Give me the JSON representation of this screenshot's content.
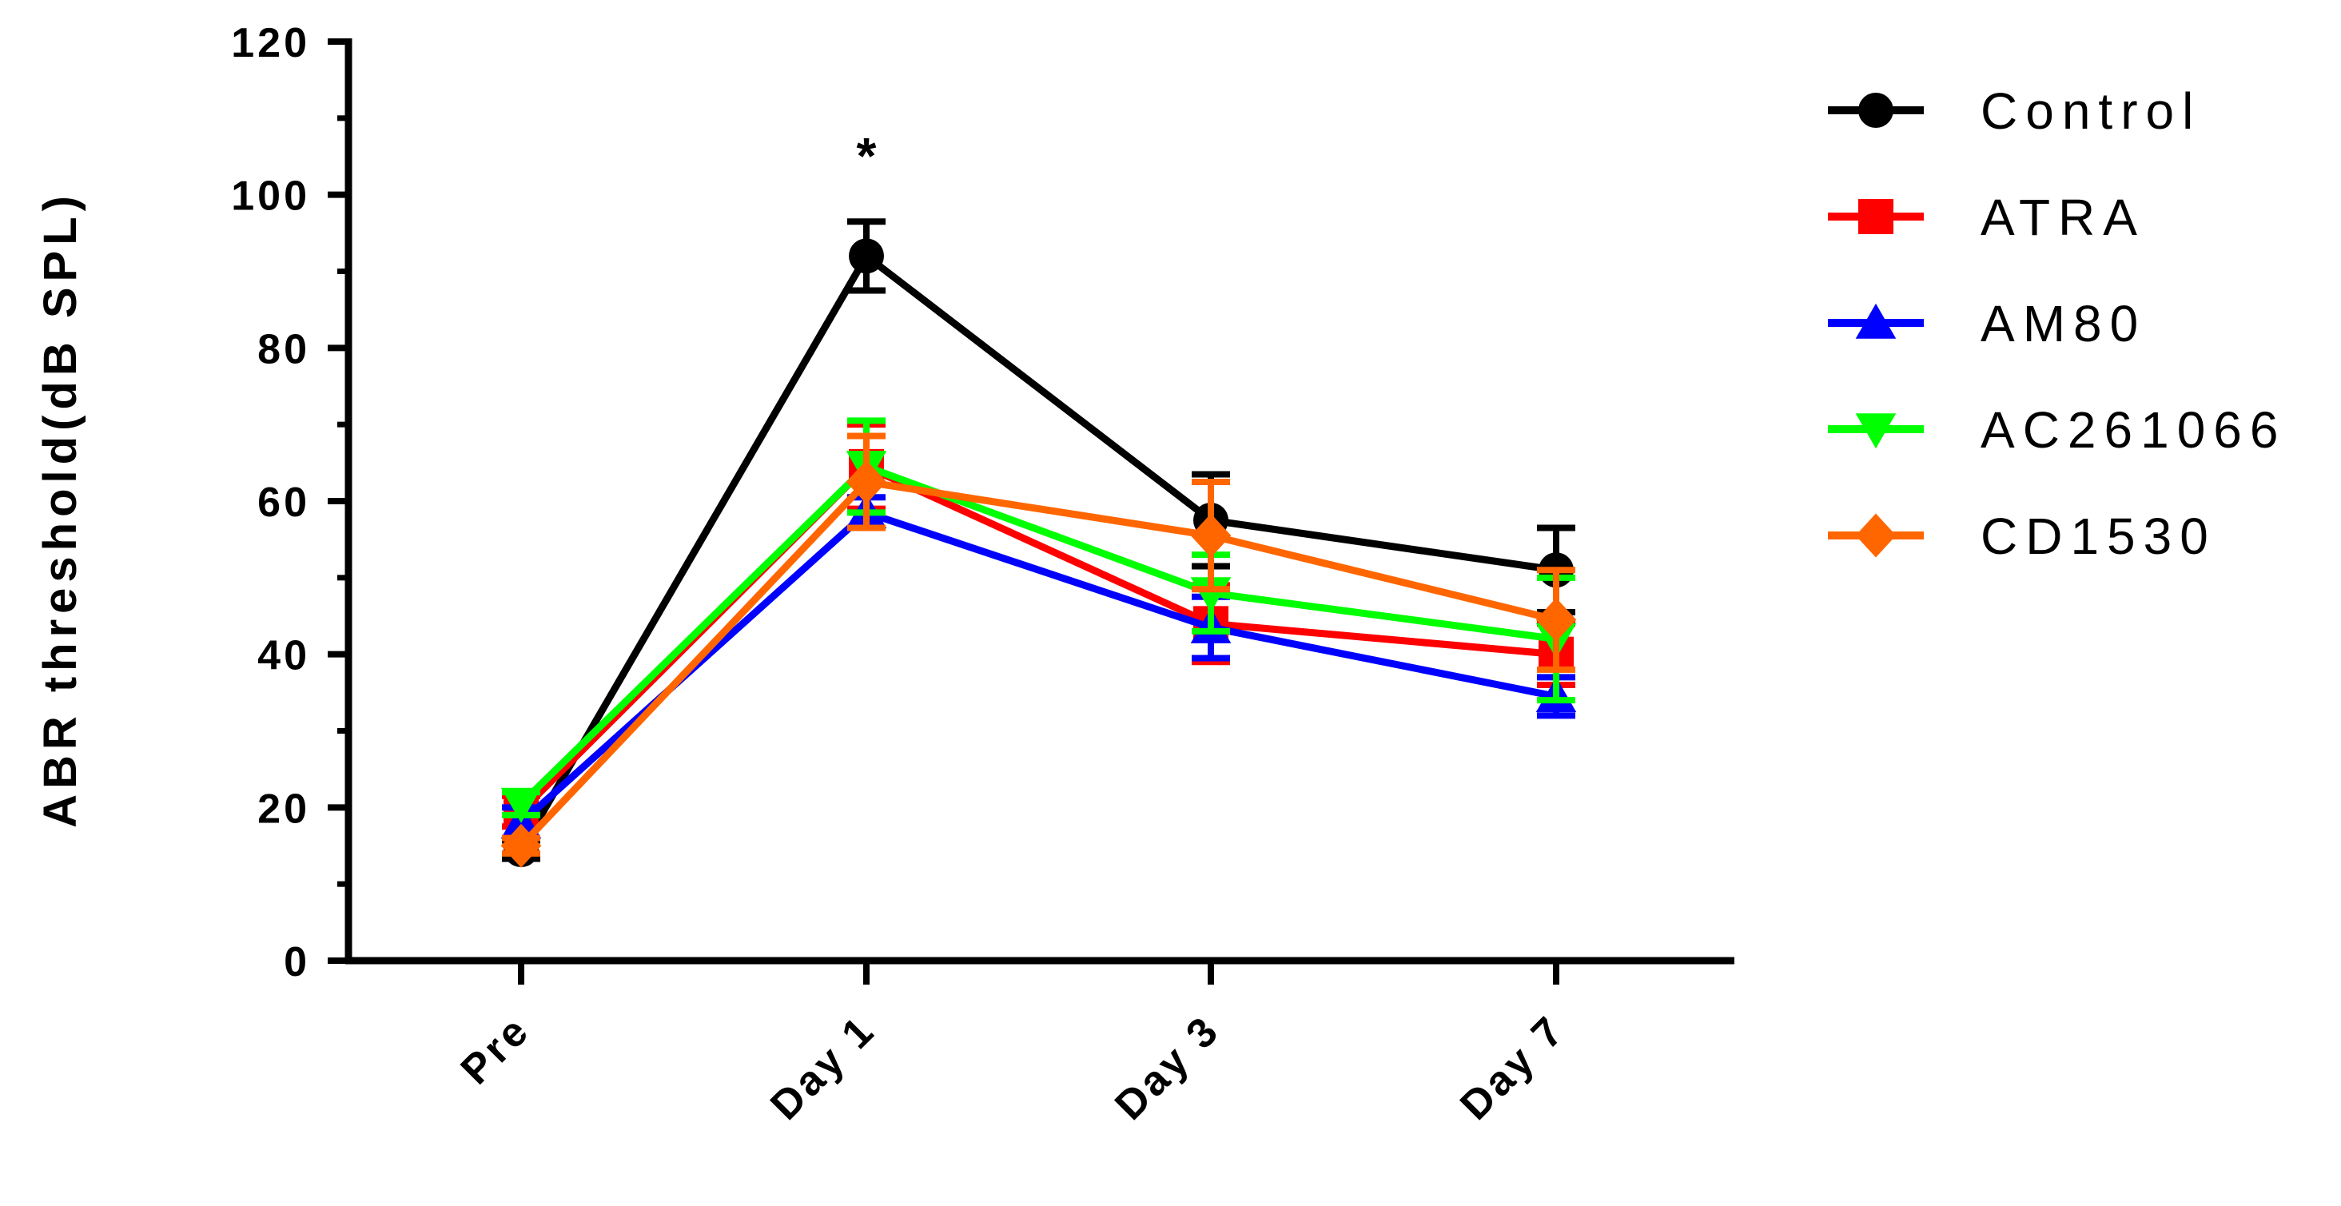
{
  "chart_data": {
    "type": "line",
    "ylabel": "ABR threshold(dB SPL)",
    "xlabel": "",
    "categories": [
      "Pre",
      "Day 1",
      "Day 3",
      "Day 7"
    ],
    "ylim": [
      0,
      120
    ],
    "yticks": [
      0,
      20,
      40,
      60,
      80,
      100,
      120
    ],
    "grid": false,
    "legend_position": "right",
    "series": [
      {
        "name": "Control",
        "color": "#000000",
        "marker": "circle",
        "values": [
          14.5,
          92,
          57.5,
          51
        ],
        "errors": [
          1.2,
          4.5,
          6,
          5.5
        ]
      },
      {
        "name": "ATRA",
        "color": "#ff0000",
        "marker": "square",
        "values": [
          19.5,
          64.5,
          44,
          40
        ],
        "errors": [
          2,
          5.5,
          5,
          4
        ]
      },
      {
        "name": "AM80",
        "color": "#0000ff",
        "marker": "triangle-up",
        "values": [
          18,
          58.5,
          43.5,
          34.5
        ],
        "errors": [
          2,
          2,
          4,
          2.5
        ]
      },
      {
        "name": "AC261066",
        "color": "#00ff00",
        "marker": "triangle-down",
        "values": [
          20.5,
          64.5,
          48,
          42
        ],
        "errors": [
          1.5,
          6,
          5,
          8
        ]
      },
      {
        "name": "CD1530",
        "color": "#ff6600",
        "marker": "diamond",
        "values": [
          15,
          62.5,
          55.5,
          44.5
        ],
        "errors": [
          1,
          6,
          7,
          6.5
        ]
      }
    ],
    "annotations": [
      {
        "text": "*",
        "category": "Day 1",
        "series": "Control"
      }
    ]
  }
}
